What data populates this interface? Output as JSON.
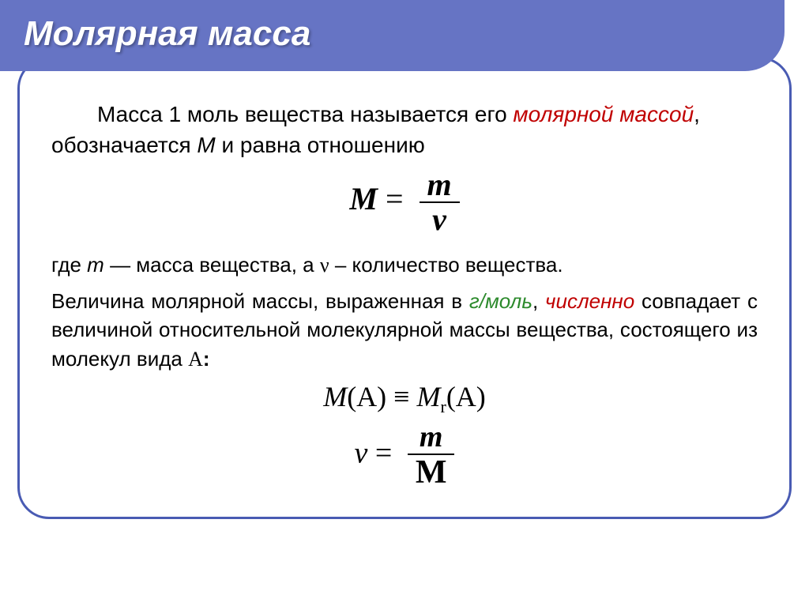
{
  "slide": {
    "title": "Молярная масса",
    "colors": {
      "header_bg": "#6674c4",
      "header_text": "#ffffff",
      "border": "#495bb3",
      "red": "#c00000",
      "green": "#2c8a2c",
      "black": "#000000"
    },
    "intro": {
      "prefix": "Масса 1 моль вещества  называется его ",
      "term": "молярной массой",
      "after_term": ", обозначается ",
      "symbol": "M",
      "tail": " и равна отношению"
    },
    "formula1": {
      "lhs": "M",
      "eq": " = ",
      "num": "m",
      "den": "ν"
    },
    "def": {
      "prefix": "где ",
      "m": "m",
      "m_text": " — масса вещества, а ",
      "nu": "ν",
      "nu_text": " – количество вещества."
    },
    "body": {
      "p1a": "Величина молярной массы, выраженная в ",
      "unit": "г/моль",
      "p1b": ", ",
      "numer": "численно",
      "p1c": " совпадает с величиной относительной молекулярной массы вещества, состоящего из молекул вида ",
      "A": "A",
      "colon": ":"
    },
    "formula2": {
      "lhs_M": "M",
      "lhs_A": "(A)",
      "equiv": " ≡ ",
      "rhs_M": "M",
      "rhs_sub": "r",
      "rhs_A": "(A)"
    },
    "formula3": {
      "lhs": "ν",
      "eq": " = ",
      "num": "m",
      "den": "M"
    }
  }
}
